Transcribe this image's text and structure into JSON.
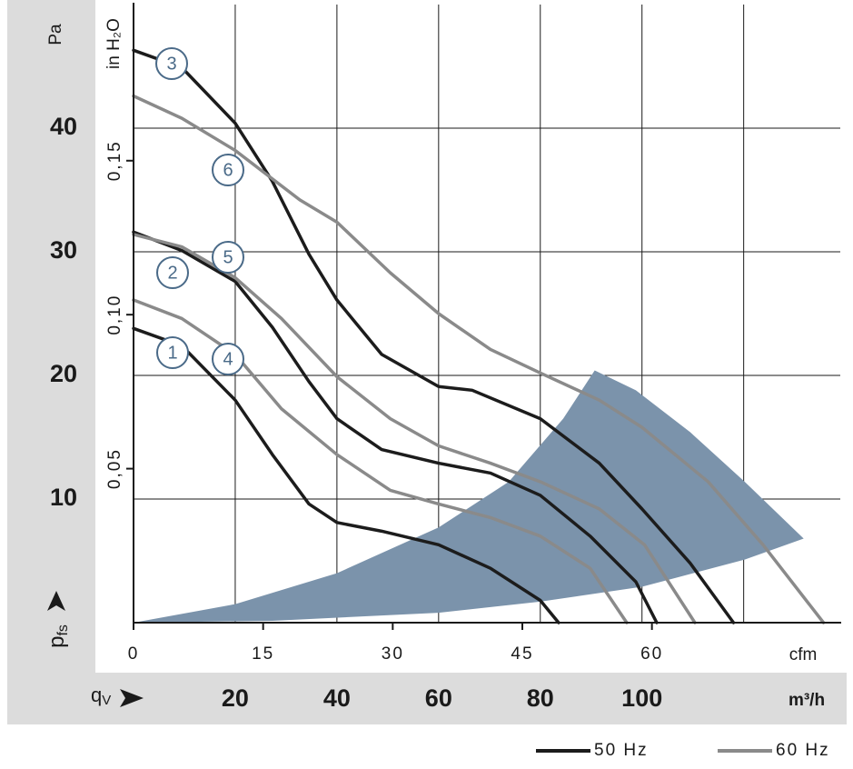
{
  "chart_data": {
    "type": "line",
    "x_label": "m³/h",
    "y_label": "Pa",
    "x2_label": "cfm",
    "y2_label": "in H₂O",
    "x_quantity": {
      "symbol": "q",
      "subscript": "V"
    },
    "y_quantity": {
      "symbol": "p",
      "subscript": "fs"
    },
    "xlim": [
      0,
      139
    ],
    "ylim": [
      0,
      50
    ],
    "xticks": [
      20,
      40,
      60,
      80,
      100,
      {
        "value": 120,
        "label": null
      }
    ],
    "yticks": [
      10,
      20,
      30,
      40
    ],
    "x2lim": [
      0,
      81.8
    ],
    "x2ticks": [
      0,
      15,
      30,
      45,
      60
    ],
    "y2lim": [
      0,
      0.2007
    ],
    "y2ticks": [
      {
        "value": 0.05,
        "label": "0,05"
      },
      {
        "value": 0.1,
        "label": "0,10"
      },
      {
        "value": 0.15,
        "label": "0,15"
      }
    ],
    "grid": true,
    "operating_range": {
      "color": "#7b93ab",
      "x": [
        0,
        20,
        40,
        60,
        73.8,
        84.5,
        90.7,
        98.8,
        109.5,
        120.2,
        131.8,
        120.2,
        100,
        80,
        60,
        27.3
      ],
      "y": [
        0,
        1.5,
        4,
        7.7,
        11.4,
        16.5,
        20.4,
        18.8,
        15.4,
        11.4,
        6.8,
        5.1,
        2.9,
        1.7,
        0.8,
        0.15
      ]
    },
    "legend": [
      {
        "name": "50 Hz",
        "color": "#1c1c1c"
      },
      {
        "name": "60 Hz",
        "color": "#8a8a8a"
      }
    ],
    "series": [
      {
        "label": "1",
        "color": "#1c1c1c",
        "x": [
          0,
          9.5,
          20,
          27.3,
          34.5,
          40,
          48.8,
          60,
          70.2,
          80,
          83.6
        ],
        "values": [
          23.8,
          22.4,
          18,
          13.6,
          9.6,
          8.1,
          7.4,
          6.3,
          4.4,
          1.8,
          0
        ]
      },
      {
        "label": "2",
        "color": "#1c1c1c",
        "x": [
          0,
          9.5,
          20,
          27.3,
          34.5,
          40,
          48.8,
          60,
          70.2,
          80,
          89.8,
          98.8,
          102.9
        ],
        "values": [
          31.6,
          30.1,
          27.6,
          23.9,
          19.5,
          16.5,
          14,
          12.9,
          12.1,
          10.3,
          7,
          3.3,
          0
        ]
      },
      {
        "label": "3",
        "color": "#1c1c1c",
        "x": [
          0,
          9.5,
          20,
          27.3,
          34.5,
          40,
          48.8,
          60,
          66.6,
          80,
          91.6,
          100,
          109.5,
          118
        ],
        "values": [
          46.3,
          44.9,
          40.4,
          35.7,
          29.8,
          26.1,
          21.7,
          19.1,
          18.8,
          16.5,
          12.9,
          9.2,
          4.8,
          0
        ]
      },
      {
        "label": "4",
        "color": "#8a8a8a",
        "x": [
          0,
          9.5,
          20,
          29.1,
          40,
          50.5,
          60,
          70.2,
          80,
          89.8,
          97
        ],
        "values": [
          26.1,
          24.6,
          21.7,
          17.3,
          13.6,
          10.7,
          9.6,
          8.5,
          7,
          4.4,
          0
        ]
      },
      {
        "label": "5",
        "color": "#8a8a8a",
        "x": [
          0,
          9.5,
          20,
          29.1,
          40,
          50.5,
          60,
          70.2,
          80,
          91.6,
          100.5,
          110.4
        ],
        "values": [
          31.4,
          30.4,
          27.9,
          24.6,
          19.9,
          16.5,
          14.3,
          12.9,
          11.4,
          9.2,
          6.3,
          0
        ]
      },
      {
        "label": "6",
        "color": "#8a8a8a",
        "x": [
          0,
          9.5,
          20,
          32.7,
          40,
          50.5,
          60,
          70.2,
          80,
          91.6,
          100,
          113,
          123.8,
          135.7
        ],
        "values": [
          42.6,
          40.8,
          38.2,
          34.2,
          32.4,
          28.3,
          25,
          22.1,
          20.2,
          18,
          15.8,
          11.4,
          6.3,
          0
        ]
      }
    ]
  }
}
